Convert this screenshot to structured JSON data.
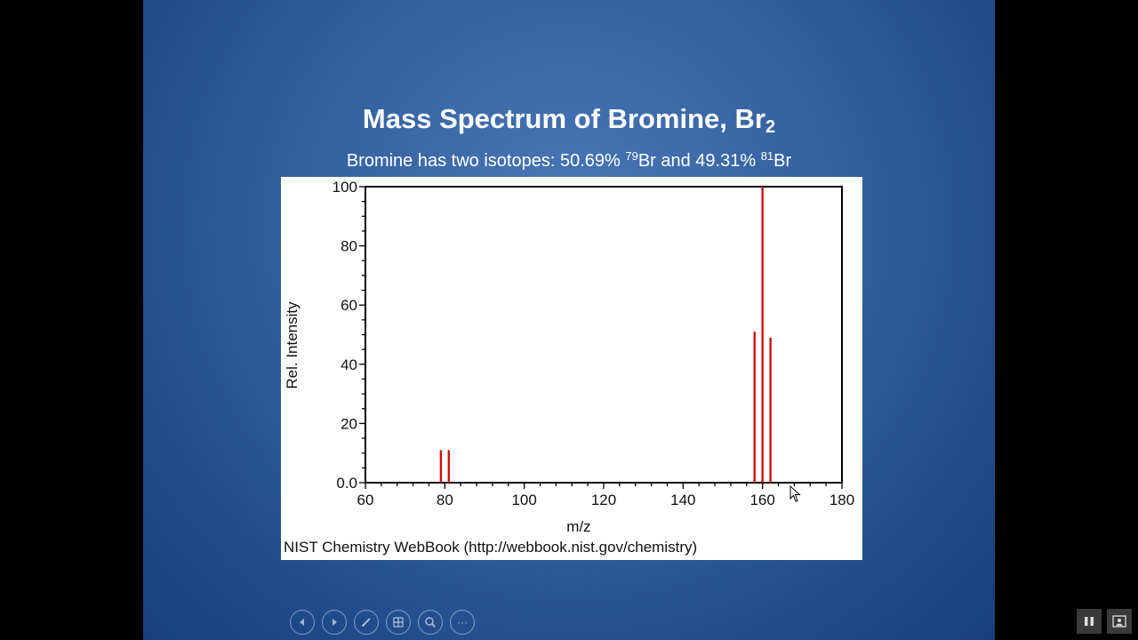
{
  "slide": {
    "title_main": "Mass Spectrum of Bromine, Br",
    "title_sub": "2",
    "subtitle_prefix": "Bromine has two isotopes: 50.69% ",
    "subtitle_sup1": "79",
    "subtitle_mid": "Br and 49.31% ",
    "subtitle_sup2": "81",
    "subtitle_suffix": "Br",
    "credit": "NIST Chemistry WebBook (http://webbook.nist.gov/chemistry)"
  },
  "chart_data": {
    "type": "bar",
    "xlabel": "m/z",
    "ylabel": "Rel. Intensity",
    "xlim": [
      60,
      180
    ],
    "ylim": [
      0,
      100
    ],
    "xticks": [
      60,
      80,
      100,
      120,
      140,
      160,
      180
    ],
    "yticks": [
      0,
      20,
      40,
      60,
      80,
      100
    ],
    "ytick_labels": [
      "0.0",
      "20",
      "40",
      "60",
      "80",
      "100"
    ],
    "bar_color": "#d01010",
    "peaks": [
      {
        "x": 79,
        "y": 11
      },
      {
        "x": 81,
        "y": 11
      },
      {
        "x": 158,
        "y": 51
      },
      {
        "x": 160,
        "y": 100
      },
      {
        "x": 162,
        "y": 49
      }
    ]
  },
  "controls": {
    "items": [
      "previous-icon",
      "next-icon",
      "pen-icon",
      "slides-icon",
      "zoom-icon",
      "more-icon"
    ],
    "more_label": "···"
  }
}
